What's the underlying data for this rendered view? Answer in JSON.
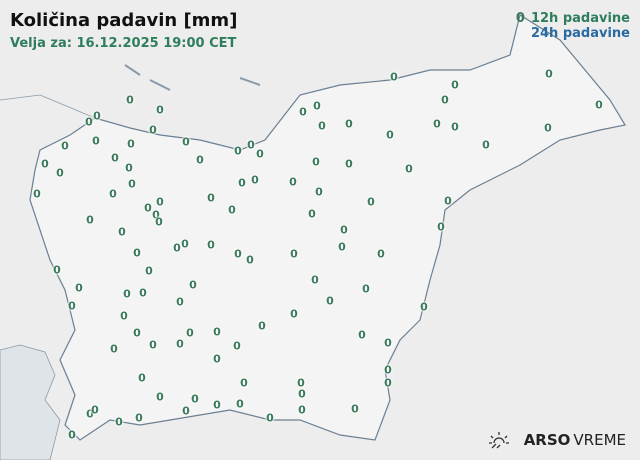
{
  "header": {
    "title": "Količina padavin [mm]",
    "valid": "Velja za: 16.12.2025 19:00 CET"
  },
  "legend": {
    "marker": "0",
    "label_12h": "12h padavine",
    "label_24h": "24h padavine",
    "color_12h": "#2e7d5b",
    "color_24h": "#2a6aa0"
  },
  "logo": {
    "brand": "ARSO",
    "product": "VREME",
    "icon": "sun-icon"
  },
  "stations": {
    "values": [
      "0",
      "0",
      "0",
      "0",
      "0",
      "0",
      "0",
      "0",
      "0",
      "0",
      "0",
      "0",
      "0",
      "0",
      "0",
      "0",
      "0",
      "0",
      "0",
      "0",
      "0",
      "0",
      "0",
      "0",
      "0",
      "0",
      "0",
      "0",
      "0",
      "0",
      "0",
      "0",
      "0",
      "0",
      "0",
      "0",
      "0",
      "0",
      "0",
      "0",
      "0",
      "0",
      "0",
      "0",
      "0",
      "0",
      "0",
      "0",
      "0",
      "0",
      "0",
      "0",
      "0",
      "0",
      "0",
      "0",
      "0",
      "0",
      "0",
      "0",
      "0",
      "0",
      "0",
      "0",
      "0",
      "0",
      "0",
      "0",
      "0",
      "0",
      "0",
      "0",
      "0",
      "0",
      "0",
      "0",
      "0",
      "0",
      "0",
      "0",
      "0",
      "0",
      "0",
      "0",
      "0",
      "0",
      "0",
      "0",
      "0",
      "0",
      "0",
      "0",
      "0",
      "0",
      "0",
      "0",
      "0",
      "0",
      "0",
      "0",
      "0",
      "0",
      "0",
      "0",
      "0",
      "0",
      "0"
    ]
  }
}
